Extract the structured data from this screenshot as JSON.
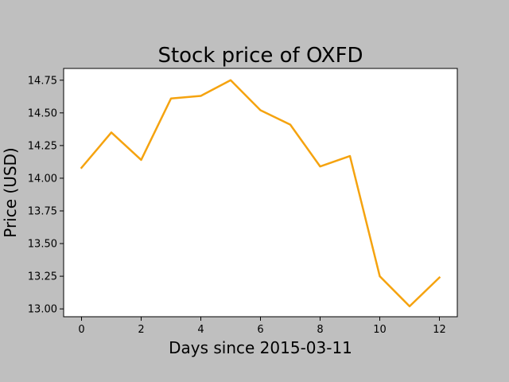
{
  "chart_data": {
    "type": "line",
    "title": "Stock price of OXFD",
    "xlabel": "Days since 2015-03-11",
    "ylabel": "Price (USD)",
    "x": [
      0,
      1,
      2,
      3,
      4,
      5,
      6,
      7,
      8,
      9,
      10,
      11,
      12
    ],
    "series": [
      {
        "values": [
          14.08,
          14.35,
          14.14,
          14.61,
          14.63,
          14.75,
          14.52,
          14.41,
          14.09,
          14.17,
          13.25,
          13.02,
          13.24
        ],
        "color": "#f5a30f"
      }
    ],
    "xlim": [
      -0.6,
      12.6
    ],
    "ylim": [
      12.94,
      14.84
    ],
    "xticks": [
      "0",
      "2",
      "4",
      "6",
      "8",
      "10",
      "12"
    ],
    "yticks": [
      "13.00",
      "13.25",
      "13.50",
      "13.75",
      "14.00",
      "14.25",
      "14.50",
      "14.75"
    ],
    "grid": false,
    "legend": "none"
  }
}
